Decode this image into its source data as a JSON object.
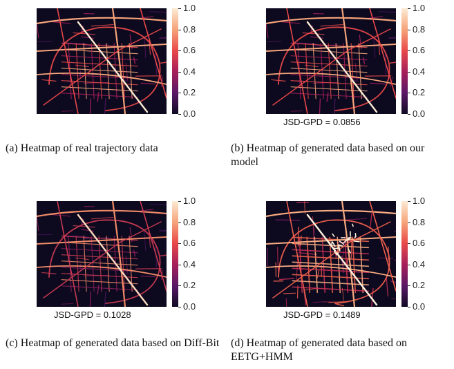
{
  "colorbar_ticks": [
    "1.0",
    "0.8",
    "0.6",
    "0.4",
    "0.2",
    "0.0"
  ],
  "panels": [
    {
      "jsd": "",
      "caption": "(a) Heatmap of real trajectory data"
    },
    {
      "jsd": "JSD-GPD = 0.0856",
      "caption": "(b) Heatmap of generated data based on our model"
    },
    {
      "jsd": "JSD-GPD = 0.1028",
      "caption": "(c) Heatmap of generated data based on Diff-Bit"
    },
    {
      "jsd": "JSD-GPD = 0.1489",
      "caption": "(d) Heatmap of generated data based on EETG+HMM"
    }
  ],
  "colors": {
    "background": "#0d0a1f",
    "low": "#5a1766",
    "mid": "#e8494a",
    "high": "#fcebd4"
  }
}
